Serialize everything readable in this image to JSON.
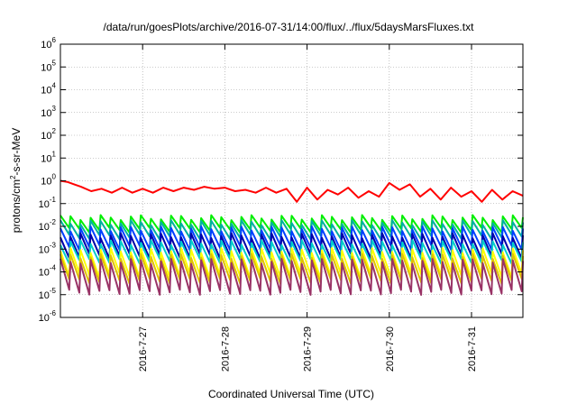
{
  "chart_data": {
    "type": "line",
    "title": "/data/run/goesPlots/archive/2016-07-31/14:00/flux/../flux/5daysMarsFluxes.txt",
    "xlabel": "Coordinated Universal Time (UTC)",
    "ylabel": "protons/cm²-s-sr-MeV",
    "ylabel_parts": {
      "base": "protons/cm",
      "exp": "2",
      "rest": "-s-sr-MeV"
    },
    "y_scale": "log",
    "ylim": [
      1e-06,
      1000000.0
    ],
    "xlim": [
      "2016-07-26T00:00",
      "2016-07-31T15:00"
    ],
    "grid": true,
    "legend": "none",
    "x_ticks": [
      "2016-7-27",
      "2016-7-28",
      "2016-7-29",
      "2016-7-30",
      "2016-7-31"
    ],
    "y_ticks": [
      {
        "base": "10",
        "exp": "-6"
      },
      {
        "base": "10",
        "exp": "-5"
      },
      {
        "base": "10",
        "exp": "-4"
      },
      {
        "base": "10",
        "exp": "-3"
      },
      {
        "base": "10",
        "exp": "-2"
      },
      {
        "base": "10",
        "exp": "-1"
      },
      {
        "base": "10",
        "exp": "0"
      },
      {
        "base": "10",
        "exp": "1"
      },
      {
        "base": "10",
        "exp": "2"
      },
      {
        "base": "10",
        "exp": "3"
      },
      {
        "base": "10",
        "exp": "4"
      },
      {
        "base": "10",
        "exp": "5"
      },
      {
        "base": "10",
        "exp": "6"
      }
    ],
    "series": [
      {
        "color": "#ff0000",
        "x": [
          "2016-07-26T00:00",
          "2016-07-26T02:00",
          "2016-07-26T04:00",
          "2016-07-26T06:00",
          "2016-07-26T09:00",
          "2016-07-26T12:00",
          "2016-07-26T15:00",
          "2016-07-26T18:00",
          "2016-07-26T21:00",
          "2016-07-27T00:00",
          "2016-07-27T03:00",
          "2016-07-27T06:00",
          "2016-07-27T09:00",
          "2016-07-27T12:00",
          "2016-07-27T15:00",
          "2016-07-27T18:00",
          "2016-07-27T21:00",
          "2016-07-28T00:00",
          "2016-07-28T03:00",
          "2016-07-28T06:00",
          "2016-07-28T09:00",
          "2016-07-28T12:00",
          "2016-07-28T15:00",
          "2016-07-28T18:00",
          "2016-07-28T21:00",
          "2016-07-29T00:00",
          "2016-07-29T03:00",
          "2016-07-29T06:00",
          "2016-07-29T09:00",
          "2016-07-29T12:00",
          "2016-07-29T15:00",
          "2016-07-29T18:00",
          "2016-07-29T21:00",
          "2016-07-30T00:00",
          "2016-07-30T03:00",
          "2016-07-30T06:00",
          "2016-07-30T09:00",
          "2016-07-30T12:00",
          "2016-07-30T15:00",
          "2016-07-30T18:00",
          "2016-07-30T21:00",
          "2016-07-31T00:00",
          "2016-07-31T03:00",
          "2016-07-31T06:00",
          "2016-07-31T09:00",
          "2016-07-31T12:00",
          "2016-07-31T15:00"
        ],
        "y": [
          1.0,
          0.9,
          0.7,
          0.55,
          0.35,
          0.45,
          0.3,
          0.5,
          0.3,
          0.45,
          0.3,
          0.5,
          0.35,
          0.5,
          0.4,
          0.55,
          0.45,
          0.5,
          0.35,
          0.4,
          0.3,
          0.5,
          0.3,
          0.45,
          0.12,
          0.5,
          0.15,
          0.4,
          0.25,
          0.5,
          0.18,
          0.35,
          0.2,
          0.8,
          0.4,
          0.7,
          0.2,
          0.45,
          0.15,
          0.5,
          0.2,
          0.35,
          0.12,
          0.4,
          0.15,
          0.35,
          0.22
        ]
      },
      {
        "color": "#00ee00",
        "x_start": "2016-07-26T00:00",
        "x_end": "2016-07-31T15:00",
        "cycles": 46,
        "peak": 0.025,
        "trough": 0.007
      },
      {
        "color": "#00b0a0",
        "x_start": "2016-07-26T00:00",
        "x_end": "2016-07-31T15:00",
        "cycles": 46,
        "peak": 0.015,
        "trough": 0.0035
      },
      {
        "color": "#0040ff",
        "x_start": "2016-07-26T00:00",
        "x_end": "2016-07-31T15:00",
        "cycles": 46,
        "peak": 0.008,
        "trough": 0.0012
      },
      {
        "color": "#0000aa",
        "x_start": "2016-07-26T00:00",
        "x_end": "2016-07-31T15:00",
        "cycles": 46,
        "peak": 0.004,
        "trough": 0.0005
      },
      {
        "color": "#00cccc",
        "x_start": "2016-07-26T00:00",
        "x_end": "2016-07-31T15:00",
        "cycles": 46,
        "peak": 0.002,
        "trough": 0.0003
      },
      {
        "color": "#ffff00",
        "x_start": "2016-07-26T00:00",
        "x_end": "2016-07-31T15:00",
        "cycles": 46,
        "peak": 0.0009,
        "trough": 7e-05
      },
      {
        "color": "#e0c000",
        "x_start": "2016-07-26T00:00",
        "x_end": "2016-07-31T15:00",
        "cycles": 46,
        "peak": 0.0005,
        "trough": 4e-05
      },
      {
        "color": "#993366",
        "x_start": "2016-07-26T00:00",
        "x_end": "2016-07-31T15:00",
        "cycles": 46,
        "peak": 0.0003,
        "trough": 1.3e-05
      }
    ]
  }
}
